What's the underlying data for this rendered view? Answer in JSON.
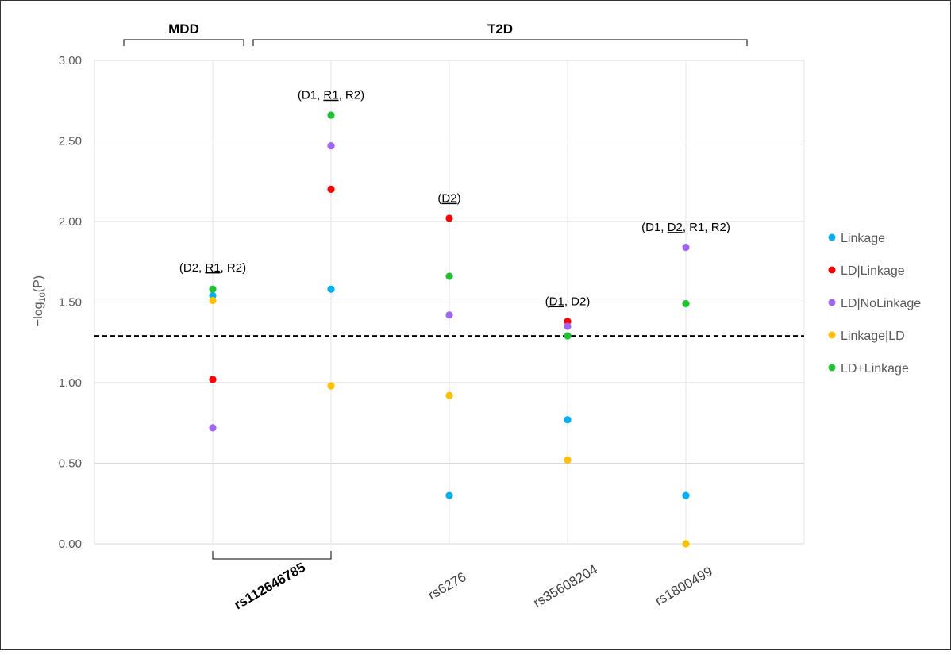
{
  "chart_data": {
    "type": "scatter",
    "ylabel": "−log",
    "ylabel_sub": "10",
    "ylabel_tail": "(P)",
    "ylim": [
      0,
      3
    ],
    "yticks": [
      "0.00",
      "0.50",
      "1.00",
      "1.50",
      "2.00",
      "2.50",
      "3.00"
    ],
    "threshold": 1.29,
    "grid": true,
    "legend_position": "right",
    "categories": [
      "",
      "rs112646785",
      "",
      "rs6276",
      "rs35608204",
      "rs1800499",
      ""
    ],
    "x_labels": [
      {
        "text": "rs112646785",
        "bold": true
      },
      {
        "text": "rs6276",
        "bold": false
      },
      {
        "text": "rs35608204",
        "bold": false
      },
      {
        "text": "rs1800499",
        "bold": false
      }
    ],
    "groups": [
      {
        "label": "MDD",
        "from": 0,
        "to": 1
      },
      {
        "label": "T2D",
        "from": 1,
        "to": 5
      }
    ],
    "series": [
      {
        "name": "Linkage",
        "color": "#00b0f0",
        "points": [
          [
            1,
            1.54
          ],
          [
            2,
            1.58
          ],
          [
            3,
            0.3
          ],
          [
            4,
            0.77
          ],
          [
            5,
            0.3
          ]
        ]
      },
      {
        "name": "LD|Linkage",
        "color": "#ff0000",
        "points": [
          [
            1,
            1.02
          ],
          [
            2,
            2.2
          ],
          [
            3,
            2.02
          ],
          [
            4,
            1.38
          ]
        ]
      },
      {
        "name": "LD|NoLinkage",
        "color": "#a066f0",
        "points": [
          [
            1,
            0.72
          ],
          [
            2,
            2.47
          ],
          [
            3,
            1.42
          ],
          [
            4,
            1.35
          ],
          [
            5,
            1.84
          ]
        ]
      },
      {
        "name": "Linkage|LD",
        "color": "#ffc000",
        "points": [
          [
            1,
            1.51
          ],
          [
            2,
            0.98
          ],
          [
            3,
            0.92
          ],
          [
            4,
            0.52
          ],
          [
            5,
            0.0
          ]
        ]
      },
      {
        "name": "LD+Linkage",
        "color": "#22c032",
        "points": [
          [
            1,
            1.58
          ],
          [
            2,
            2.66
          ],
          [
            3,
            1.66
          ],
          [
            4,
            1.29
          ],
          [
            5,
            1.49
          ]
        ]
      }
    ],
    "annotations": [
      {
        "x": 1,
        "y": 1.69,
        "parts": [
          {
            "t": "(D2, "
          },
          {
            "t": "R1",
            "u": true
          },
          {
            "t": ", R2)"
          }
        ]
      },
      {
        "x": 2,
        "y": 2.76,
        "parts": [
          {
            "t": "(D1, "
          },
          {
            "t": "R1",
            "u": true
          },
          {
            "t": ", R2)"
          }
        ]
      },
      {
        "x": 3,
        "y": 2.12,
        "parts": [
          {
            "t": "("
          },
          {
            "t": "D2",
            "u": true
          },
          {
            "t": ")"
          }
        ]
      },
      {
        "x": 4,
        "y": 1.48,
        "parts": [
          {
            "t": "("
          },
          {
            "t": "D1",
            "u": true
          },
          {
            "t": ", D2)"
          }
        ]
      },
      {
        "x": 5,
        "y": 1.94,
        "parts": [
          {
            "t": "(D1, "
          },
          {
            "t": "D2",
            "u": true
          },
          {
            "t": ", R1, R2)"
          }
        ]
      }
    ]
  }
}
